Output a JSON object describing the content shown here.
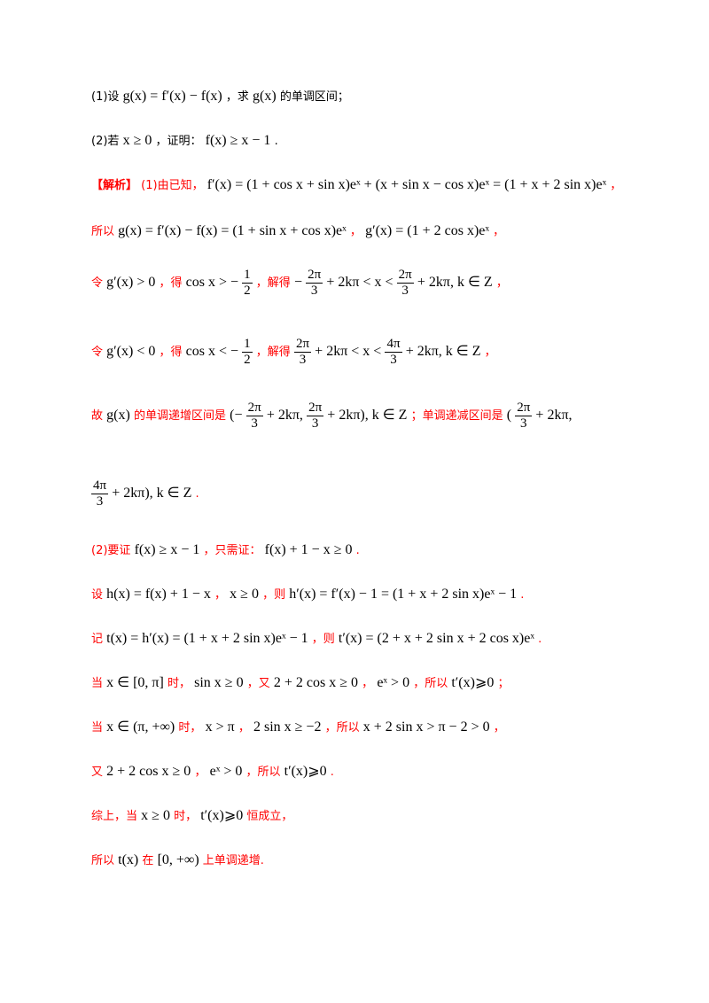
{
  "q1": {
    "prefix": "(1)设",
    "expr1": "g(x) = f′(x) − f(x)",
    "mid": "，求",
    "expr2": "g(x)",
    "suffix": "的单调区间；"
  },
  "q2": {
    "prefix": "(2)若",
    "expr1": "x ≥ 0",
    "mid": "，证明：",
    "expr2": "f(x) ≥ x − 1",
    "suffix": "."
  },
  "s1": {
    "tag": "【解析】",
    "t1": "(1)由已知，",
    "e1": "f′(x) = (1 + cos x + sin x)eˣ + (x + sin x − cos x)eˣ = (1 + x + 2 sin x)eˣ",
    "t2": "，"
  },
  "s2": {
    "t1": "所以",
    "e1": "g(x) = f′(x) − f(x) = (1 + sin x + cos x)eˣ",
    "t2": "，",
    "e2": "g′(x) = (1 + 2 cos x)eˣ",
    "t3": "，"
  },
  "s3": {
    "t1": "令",
    "e1": "g′(x) > 0",
    "t2": "，得",
    "e2": "cos x > −",
    "n1": "1",
    "d1": "2",
    "t3": "，解得",
    "e3a": "−",
    "n2": "2π",
    "d2": "3",
    "e3b": "+ 2kπ < x <",
    "n3": "2π",
    "d3": "3",
    "e3c": "+ 2kπ, k ∈ Z",
    "t4": "，"
  },
  "s4": {
    "t1": "令",
    "e1": "g′(x) < 0",
    "t2": "，得",
    "e2": "cos x < −",
    "n1": "1",
    "d1": "2",
    "t3": "，解得",
    "n2": "2π",
    "d2": "3",
    "e3b": "+ 2kπ < x <",
    "n3": "4π",
    "d3": "3",
    "e3c": "+ 2kπ, k ∈ Z",
    "t4": "，"
  },
  "s5": {
    "t1": "故",
    "e1": "g(x)",
    "t2": "的单调递增区间是",
    "e2a": "(−",
    "n1": "2π",
    "d1": "3",
    "e2b": "+ 2kπ,",
    "n2": "2π",
    "d2": "3",
    "e2c": "+ 2kπ), k ∈ Z",
    "t3": "；单调递减区间是",
    "e3a": "(",
    "n3": "2π",
    "d3": "3",
    "e3b": "+ 2kπ,"
  },
  "s6": {
    "n1": "4π",
    "d1": "3",
    "e1": "+ 2kπ), k ∈ Z",
    "t1": "."
  },
  "s7": {
    "t1": "(2)要证",
    "e1": "f(x) ≥ x − 1",
    "t2": "，只需证：",
    "e2": "f(x) + 1 − x ≥ 0",
    "t3": "."
  },
  "s8": {
    "t1": "设",
    "e1": "h(x) = f(x) + 1 − x",
    "t2": "，",
    "e2": "x ≥ 0",
    "t3": "，则",
    "e3": "h′(x) = f′(x) − 1 = (1 + x + 2 sin x)eˣ − 1",
    "t4": "."
  },
  "s9": {
    "t1": "记",
    "e1": "t(x) = h′(x) = (1 + x + 2 sin x)eˣ − 1",
    "t2": "，则",
    "e2": "t′(x) = (2 + x + 2 sin x + 2 cos x)eˣ",
    "t3": "."
  },
  "s10": {
    "t1": "当",
    "e1": "x ∈ [0, π]",
    "t2": "时，",
    "e2": "sin x ≥ 0",
    "t3": "，又",
    "e3": "2 + 2 cos x ≥ 0",
    "t4": "，",
    "e4": "eˣ > 0",
    "t5": "，所以",
    "e5": "t′(x)⩾0",
    "t6": "；"
  },
  "s11": {
    "t1": "当",
    "e1": "x ∈ (π, +∞)",
    "t2": "时，",
    "e2": "x > π",
    "t3": "，",
    "e3": "2 sin x ≥ −2",
    "t4": "，所以",
    "e4": "x + 2 sin x > π − 2 > 0",
    "t5": "，"
  },
  "s12": {
    "t1": "又",
    "e1": "2 + 2 cos x ≥ 0",
    "t2": "，",
    "e2": "eˣ > 0",
    "t3": "，所以",
    "e3": "t′(x)⩾0",
    "t4": "."
  },
  "s13": {
    "t1": "综上，当",
    "e1": "x ≥ 0",
    "t2": "时，",
    "e2": "t′(x)⩾0",
    "t3": "恒成立，"
  },
  "s14": {
    "t1": "所以",
    "e1": "t(x)",
    "t2": "在",
    "e2": "[0, +∞)",
    "t3": "上单调递增."
  }
}
